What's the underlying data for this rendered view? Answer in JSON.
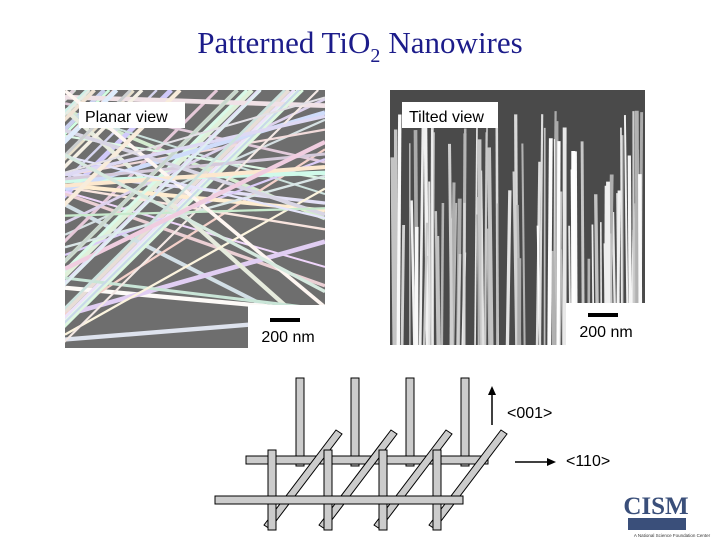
{
  "title": {
    "text": "Patterned TiO",
    "subscript": "2",
    "rest": "Nanowires"
  },
  "images": [
    {
      "label": "Planar view",
      "scale": "200 nm"
    },
    {
      "label": "Tilted view",
      "scale": "200 nm"
    }
  ],
  "diagram": {
    "vertical_axis": "<001>",
    "horizontal_axis": "<110>"
  },
  "logo": {
    "name": "CISM",
    "tagline": "A National Science Foundation Center"
  }
}
